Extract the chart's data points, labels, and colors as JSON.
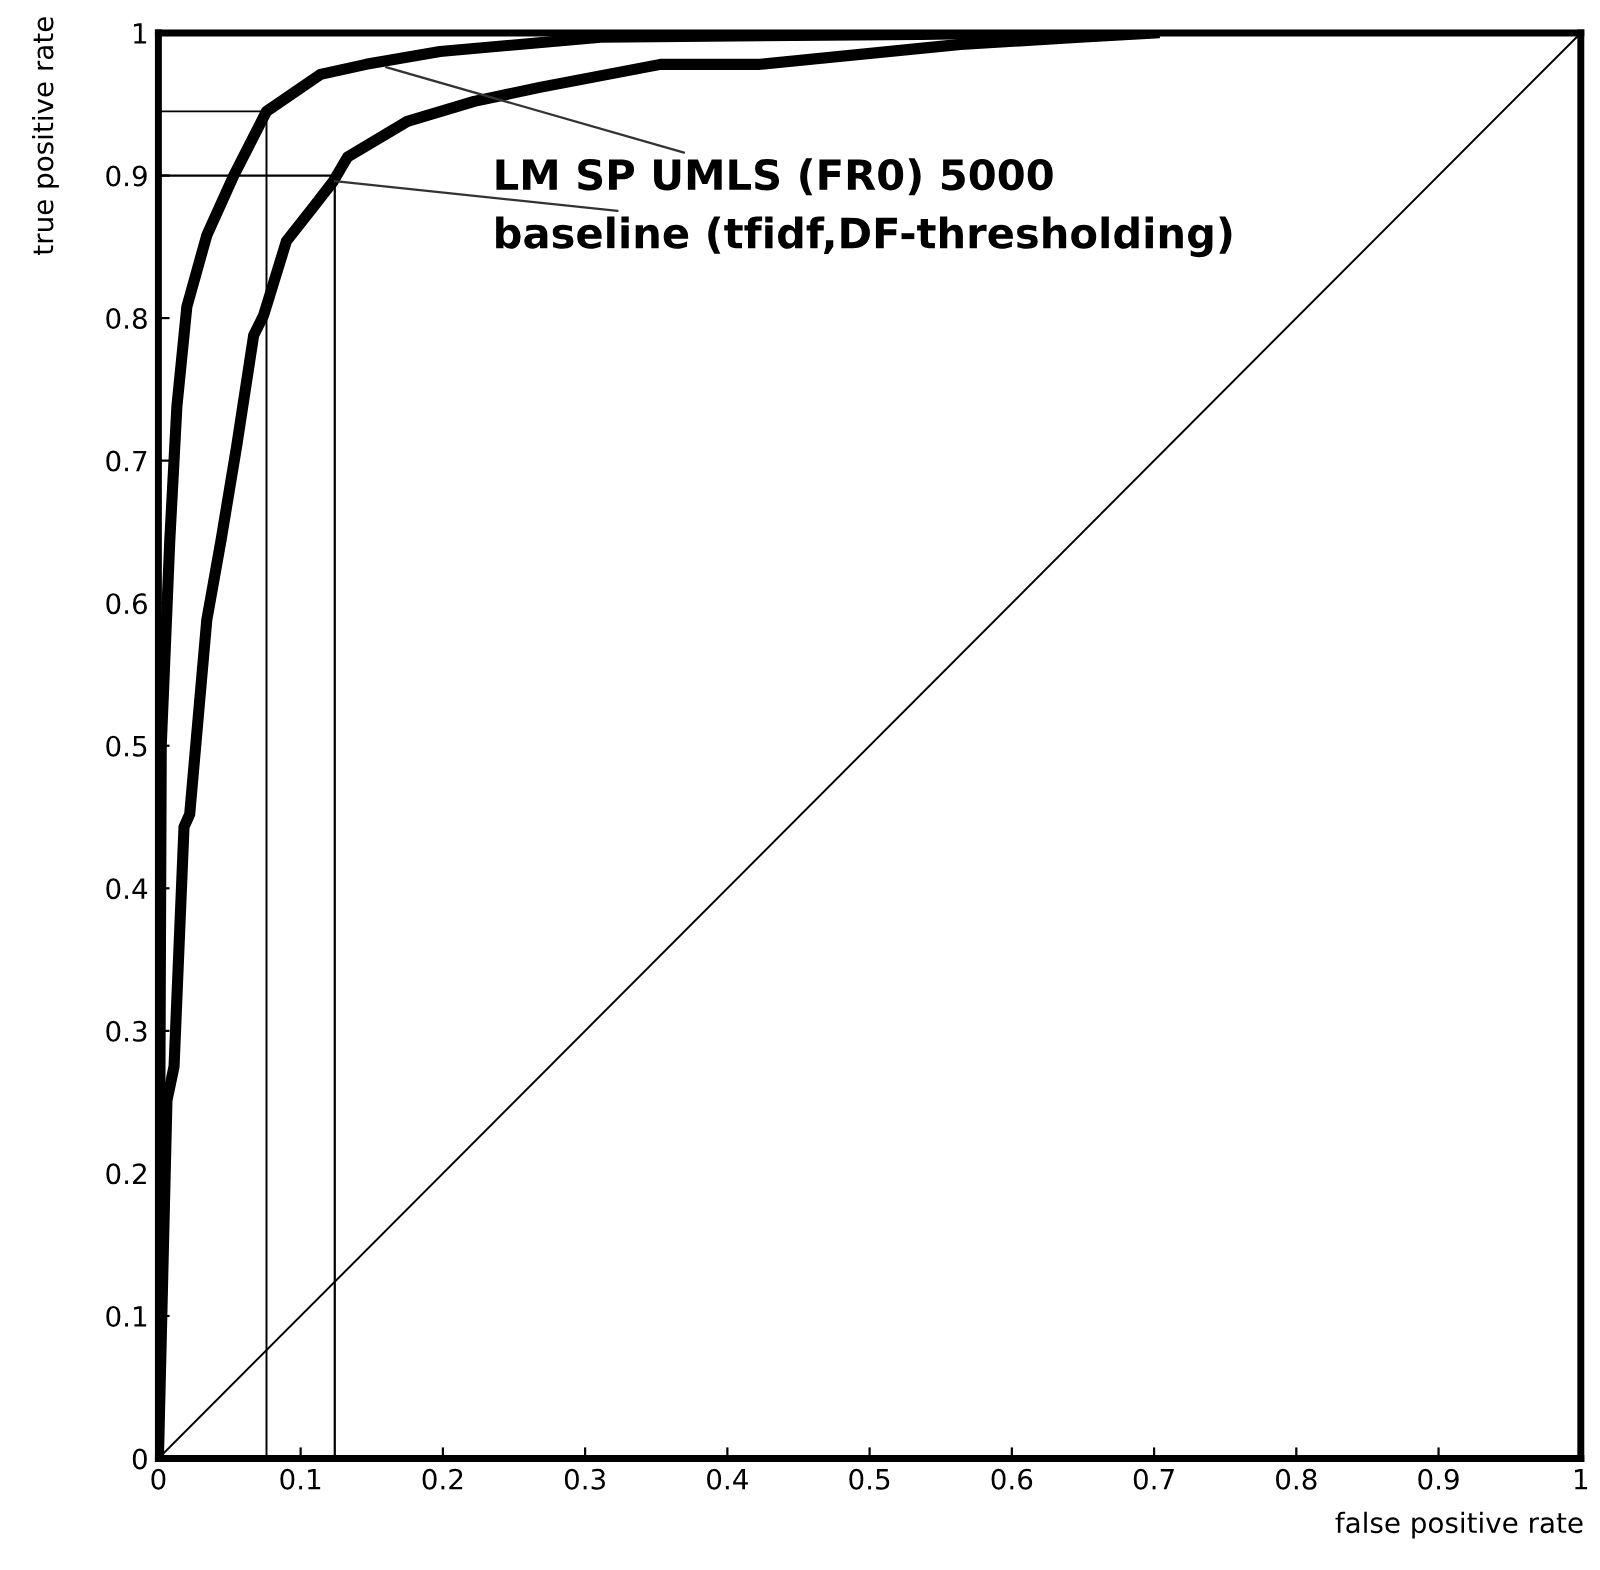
{
  "chart_data": {
    "type": "line",
    "xlabel": "false positive rate",
    "ylabel": "true positive rate",
    "xlim": [
      0,
      1
    ],
    "ylim": [
      0,
      1
    ],
    "xticks": [
      0,
      0.1,
      0.2,
      0.3,
      0.4,
      0.5,
      0.6,
      0.7,
      0.8,
      0.9,
      1
    ],
    "yticks": [
      0,
      0.1,
      0.2,
      0.3,
      0.4,
      0.5,
      0.6,
      0.7,
      0.8,
      0.9,
      1
    ],
    "grid": false,
    "legend": false,
    "marker": "none",
    "line_style": "solid",
    "series": [
      {
        "color": "#000000",
        "x": [
          0,
          0.002,
          0.008,
          0.013,
          0.02,
          0.034,
          0.053,
          0.076,
          0.114,
          0.146,
          0.198,
          0.311,
          0.536,
          0.6
        ],
        "values": [
          0,
          0.5,
          0.644,
          0.738,
          0.808,
          0.858,
          0.9,
          0.945,
          0.971,
          0.978,
          0.987,
          0.997,
          0.999,
          1
        ]
      },
      {
        "color": "#000000",
        "x": [
          0,
          0.006,
          0.011,
          0.018,
          0.022,
          0.034,
          0.044,
          0.055,
          0.067,
          0.074,
          0.09,
          0.109,
          0.123,
          0.133,
          0.175,
          0.222,
          0.269,
          0.353,
          0.423,
          0.564,
          0.648,
          0.7
        ],
        "values": [
          0,
          0.251,
          0.275,
          0.443,
          0.452,
          0.588,
          0.644,
          0.71,
          0.788,
          0.802,
          0.854,
          0.878,
          0.896,
          0.913,
          0.938,
          0.952,
          0.962,
          0.978,
          0.978,
          0.992,
          0.997,
          1
        ]
      },
      {
        "color": "#000000",
        "x": [
          0,
          1
        ],
        "values": [
          0,
          1
        ]
      },
      {
        "color": "#000000",
        "x": [
          0,
          0.076
        ],
        "values": [
          0.945,
          0.945
        ]
      },
      {
        "color": "#000000",
        "x": [
          0.076,
          0.076
        ],
        "values": [
          0,
          0.945
        ]
      }
    ],
    "ref_lines": [
      {
        "axis": "x",
        "value": 0.124,
        "color": "#000000"
      },
      {
        "axis": "y",
        "value": 0.9,
        "color": "#000000"
      }
    ],
    "annotations": [
      {
        "text": "LM SP UMLS (FR0) 5000",
        "x": 0.16,
        "y": 0.976
      },
      {
        "text": "baseline (tfidf,DF-thresholding)",
        "x": 0.124,
        "y": 0.896
      }
    ]
  }
}
